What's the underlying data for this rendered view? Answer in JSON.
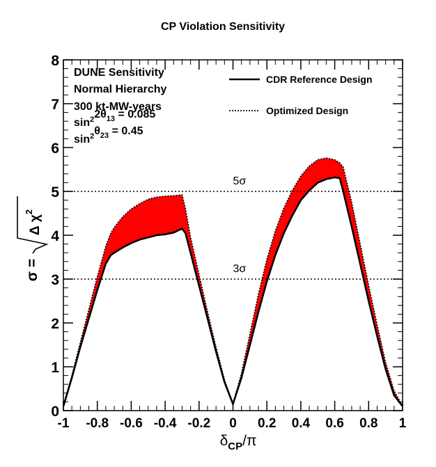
{
  "chart_data": {
    "type": "line",
    "title": "CP Violation Sensitivity",
    "xlabel": {
      "main": "δ",
      "sub": "CP",
      "tail": "/π"
    },
    "ylabel": {
      "main": "σ = ",
      "rad_prefix": "Δ χ",
      "rad_sup": "2"
    },
    "xlim": [
      -1,
      1
    ],
    "ylim": [
      0,
      8
    ],
    "x_ticks": [
      -1,
      -0.8,
      -0.6,
      -0.4,
      -0.2,
      0,
      0.2,
      0.4,
      0.6,
      0.8,
      1
    ],
    "x_tick_labels": [
      "-1",
      "-0.8",
      "-0.6",
      "-0.4",
      "-0.2",
      "0",
      "0.2",
      "0.4",
      "0.6",
      "0.8",
      "1"
    ],
    "y_ticks": [
      0,
      1,
      2,
      3,
      4,
      5,
      6,
      7,
      8
    ],
    "y_tick_labels": [
      "0",
      "1",
      "2",
      "3",
      "4",
      "5",
      "6",
      "7",
      "8"
    ],
    "info_lines": [
      {
        "text": "DUNE Sensitivity"
      },
      {
        "text": "Normal Hierarchy"
      },
      {
        "text": "300 kt-MW-years"
      },
      {
        "parts": [
          [
            "sin",
            ""
          ],
          [
            "2",
            "sup"
          ],
          [
            "2θ",
            ""
          ],
          [
            "13",
            "sub"
          ],
          [
            " = 0.085",
            ""
          ]
        ]
      },
      {
        "parts": [
          [
            "sin",
            ""
          ],
          [
            "2",
            "sup"
          ],
          [
            "θ",
            ""
          ],
          [
            "23",
            "sub"
          ],
          [
            " = 0.45",
            ""
          ]
        ]
      }
    ],
    "legend": [
      {
        "label": "CDR Reference Design",
        "style": "solid"
      },
      {
        "label": "Optimized Design",
        "style": "dotted"
      }
    ],
    "reference_lines": [
      {
        "y": 5,
        "label": "5σ",
        "label_x": 0.0
      },
      {
        "y": 3,
        "label": "3σ",
        "label_x": 0.0
      }
    ],
    "band_color": "#ff0000",
    "series": [
      {
        "name": "CDR Reference Design",
        "style": "solid",
        "x": [
          -1,
          -0.95,
          -0.9,
          -0.85,
          -0.8,
          -0.75,
          -0.72,
          -0.7,
          -0.65,
          -0.6,
          -0.55,
          -0.5,
          -0.45,
          -0.4,
          -0.35,
          -0.3,
          -0.28,
          -0.25,
          -0.2,
          -0.15,
          -0.1,
          -0.05,
          0,
          0.05,
          0.1,
          0.15,
          0.2,
          0.25,
          0.3,
          0.35,
          0.4,
          0.45,
          0.5,
          0.55,
          0.6,
          0.63,
          0.65,
          0.7,
          0.75,
          0.8,
          0.85,
          0.9,
          0.95,
          1
        ],
        "y": [
          0.1,
          0.75,
          1.45,
          2.1,
          2.75,
          3.35,
          3.55,
          3.6,
          3.72,
          3.82,
          3.9,
          3.95,
          4.0,
          4.02,
          4.06,
          4.15,
          4.05,
          3.6,
          2.85,
          2.1,
          1.35,
          0.65,
          0.15,
          0.75,
          1.5,
          2.25,
          2.95,
          3.55,
          4.05,
          4.45,
          4.8,
          5.02,
          5.2,
          5.28,
          5.32,
          5.3,
          5.0,
          4.2,
          3.35,
          2.5,
          1.7,
          0.95,
          0.35,
          0.1
        ]
      },
      {
        "name": "Optimized Design",
        "style": "dotted",
        "x": [
          -1,
          -0.95,
          -0.9,
          -0.85,
          -0.8,
          -0.75,
          -0.72,
          -0.7,
          -0.65,
          -0.6,
          -0.55,
          -0.5,
          -0.45,
          -0.4,
          -0.35,
          -0.3,
          -0.28,
          -0.25,
          -0.2,
          -0.15,
          -0.1,
          -0.05,
          0,
          0.05,
          0.1,
          0.15,
          0.2,
          0.25,
          0.3,
          0.35,
          0.4,
          0.45,
          0.5,
          0.55,
          0.6,
          0.63,
          0.65,
          0.7,
          0.75,
          0.8,
          0.85,
          0.9,
          0.95,
          1
        ],
        "y": [
          0.1,
          0.8,
          1.55,
          2.3,
          3.05,
          3.75,
          4.05,
          4.18,
          4.42,
          4.6,
          4.72,
          4.82,
          4.87,
          4.89,
          4.9,
          4.92,
          4.6,
          3.95,
          3.1,
          2.25,
          1.45,
          0.7,
          0.15,
          0.85,
          1.75,
          2.65,
          3.45,
          4.1,
          4.62,
          5.02,
          5.35,
          5.58,
          5.72,
          5.76,
          5.72,
          5.65,
          5.55,
          4.75,
          3.8,
          2.85,
          1.95,
          1.1,
          0.45,
          0.1
        ]
      }
    ]
  }
}
